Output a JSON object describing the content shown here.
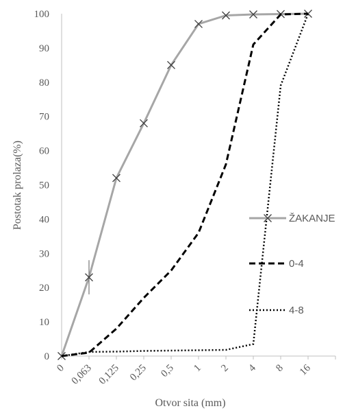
{
  "chart_data": {
    "type": "line",
    "categories": [
      "0",
      "0,063",
      "0,125",
      "0,25",
      "0,5",
      "1",
      "2",
      "4",
      "8",
      "16"
    ],
    "xlabel": "Otvor sita (mm)",
    "ylabel": "Postotak prolaza(%)",
    "ylim": [
      0,
      100
    ],
    "yticks": [
      "0",
      "10",
      "20",
      "30",
      "40",
      "50",
      "60",
      "70",
      "80",
      "90",
      "100"
    ],
    "grid": false,
    "legend_position": "right",
    "series": [
      {
        "name": "ŽAKANJE",
        "values": [
          0,
          23,
          52,
          68,
          85,
          97,
          99.5,
          99.8,
          99.9,
          100
        ],
        "color": "#a6a6a6",
        "style": "solid",
        "marker": "x",
        "error_bar_at": "0,063",
        "error_bar_range": [
          18,
          28
        ]
      },
      {
        "name": "0-4",
        "values": [
          0,
          1,
          8,
          17,
          25,
          36,
          56,
          91,
          99.8,
          100
        ],
        "color": "#000000",
        "style": "dashed",
        "marker": "none"
      },
      {
        "name": "4-8",
        "values": [
          0,
          1.2,
          1.3,
          1.5,
          1.6,
          1.7,
          1.8,
          3.5,
          79,
          100
        ],
        "color": "#000000",
        "style": "dotted",
        "marker": "none"
      }
    ]
  }
}
